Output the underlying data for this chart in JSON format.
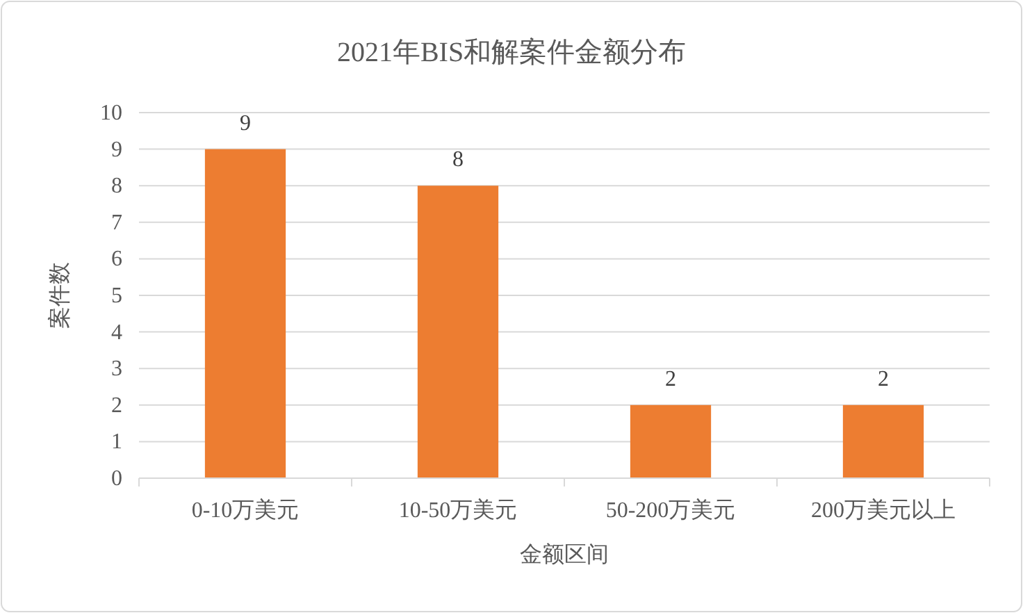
{
  "chart_data": {
    "type": "bar",
    "title": "2021年BIS和解案件金额分布",
    "xlabel": "金额区间",
    "ylabel": "案件数",
    "categories": [
      "0-10万美元",
      "10-50万美元",
      "50-200万美元",
      "200万美元以上"
    ],
    "values": [
      9,
      8,
      2,
      2
    ],
    "color": "#ed7d31",
    "ylim": [
      0,
      10
    ],
    "yticks": [
      0,
      1,
      2,
      3,
      4,
      5,
      6,
      7,
      8,
      9,
      10
    ],
    "grid": "y",
    "data_labels": true
  }
}
